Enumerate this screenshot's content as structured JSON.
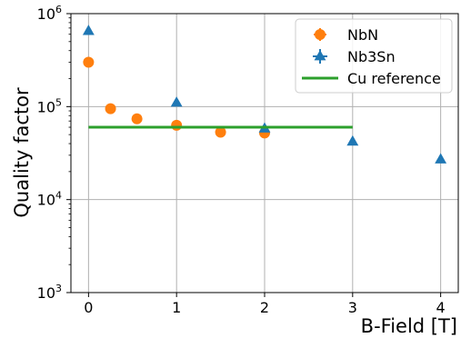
{
  "chart_data": {
    "type": "scatter",
    "xlabel": "B-Field [T]",
    "ylabel": "Quality factor",
    "yscale": "log",
    "xlim": [
      -0.2,
      4.2
    ],
    "ylim": [
      1000,
      1000000
    ],
    "grid": true,
    "legend_position": "top-right",
    "x_ticks": [
      {
        "value": 0,
        "label": "0"
      },
      {
        "value": 1,
        "label": "1"
      },
      {
        "value": 2,
        "label": "2"
      },
      {
        "value": 3,
        "label": "3"
      },
      {
        "value": 4,
        "label": "4"
      }
    ],
    "y_ticks": [
      {
        "value": 1000,
        "base": "10",
        "exp": "3"
      },
      {
        "value": 10000,
        "base": "10",
        "exp": "4"
      },
      {
        "value": 100000,
        "base": "10",
        "exp": "5"
      },
      {
        "value": 1000000,
        "base": "10",
        "exp": "6"
      }
    ],
    "series": [
      {
        "name": "NbN",
        "marker": "circle",
        "color": "#ff7f0e",
        "x": [
          0,
          0.25,
          0.55,
          1.0,
          1.5,
          2.0
        ],
        "y": [
          300000,
          95000,
          74000,
          63000,
          53000,
          52000
        ]
      },
      {
        "name": "Nb3Sn",
        "marker": "triangle",
        "color": "#1f77b4",
        "x": [
          0,
          1.0,
          2.0,
          3.0,
          4.0
        ],
        "y": [
          650000,
          110000,
          58000,
          42000,
          27000
        ]
      },
      {
        "name": "Cu reference",
        "marker": "line",
        "color": "#2ca02c",
        "x": [
          0,
          3
        ],
        "y": [
          60000,
          60000
        ]
      }
    ]
  }
}
